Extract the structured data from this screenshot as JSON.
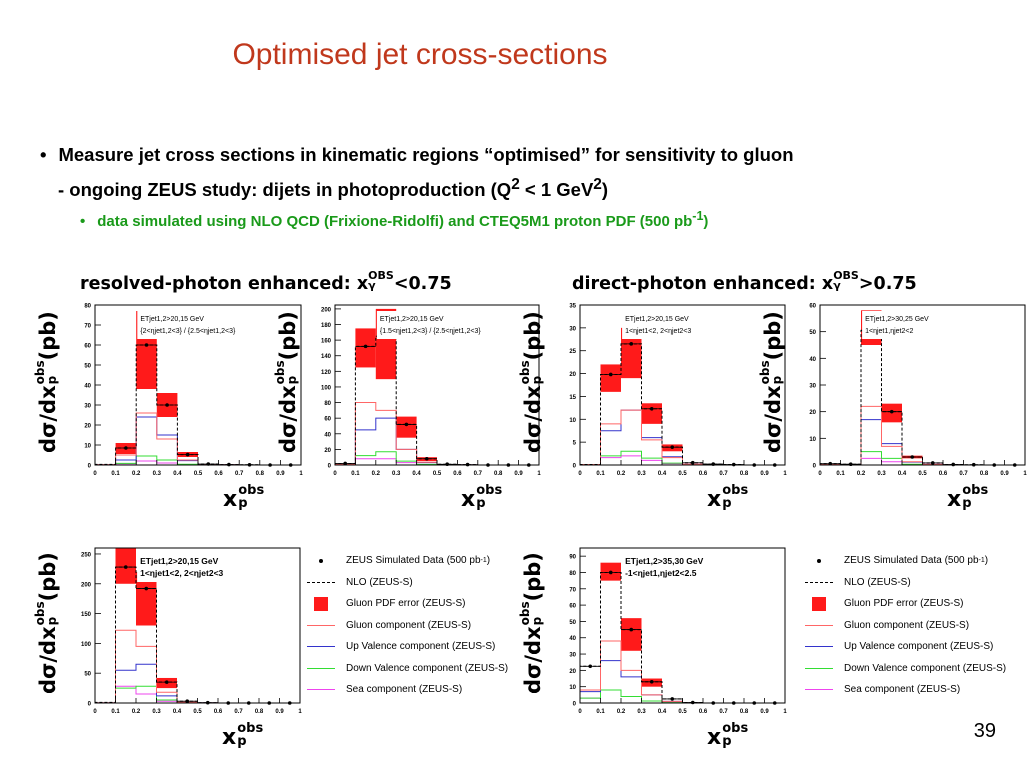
{
  "slide": {
    "title": "Optimised jet cross-sections",
    "bullet1": "Measure jet cross sections in kinematic regions “optimised” for sensitivity to gluon",
    "bullet2_pre": "- ongoing ZEUS study: dijets in photoproduction (Q",
    "bullet2_mid": " < 1 GeV",
    "bullet2_end": ")",
    "bullet2_sup": "2",
    "bullet3_pre": "data simulated using NLO QCD (Frixione-Ridolfi) and CTEQ5M1 proton PDF (500 pb",
    "bullet3_sup": "-1",
    "bullet3_end": ")",
    "page_number": "39"
  },
  "groups": {
    "resolved": {
      "pre": "resolved-photon enhanced: x",
      "sup": "OBS",
      "sub": "γ",
      "post": "<0.75"
    },
    "direct": {
      "pre": "direct-photon enhanced: x",
      "sup": "OBS",
      "sub": "γ",
      "post": ">0.75"
    }
  },
  "axis_text": {
    "y_pre": "dσ/dx",
    "y_sup": "obs",
    "y_sub": "p",
    "y_post": "(pb)",
    "x_main": "x",
    "x_sup": "obs",
    "x_sub": "p"
  },
  "legend": {
    "items": [
      {
        "label": "ZEUS Simulated Data (500 pb",
        "sup": "-1",
        "post": ")",
        "kind": "dot",
        "color": "#000000"
      },
      {
        "label": "NLO (ZEUS-S)",
        "kind": "dash",
        "color": "#000000"
      },
      {
        "label": "Gluon PDF error (ZEUS-S)",
        "kind": "box",
        "color": "#ff1a1a"
      },
      {
        "label": "Gluon component (ZEUS-S)",
        "kind": "line",
        "color": "#ff6666"
      },
      {
        "label": "Up Valence component (ZEUS-S)",
        "kind": "line",
        "color": "#3333cc"
      },
      {
        "label": "Down Valence component (ZEUS-S)",
        "kind": "line",
        "color": "#33dd33"
      },
      {
        "label": "Sea component (ZEUS-S)",
        "kind": "line",
        "color": "#ee44ee"
      }
    ]
  },
  "chart_data": [
    {
      "type": "bar",
      "x_ticks": [
        "0",
        "0.1",
        "0.2",
        "0.3",
        "0.4",
        "0.5",
        "0.6",
        "0.7",
        "0.8",
        "0.9",
        "1"
      ],
      "bin_edges": [
        0.0,
        0.1,
        0.2,
        0.3,
        0.4,
        0.5,
        0.6,
        0.7,
        0.8,
        0.9,
        1.0
      ],
      "ylim": [
        0,
        80
      ],
      "y_ticks": [
        0,
        10,
        20,
        30,
        40,
        50,
        60,
        70,
        80
      ],
      "annotation": [
        "E_T^{jet1,2}>20,15 GeV",
        "{2<η^{jet1,2}<3} / {2.5<η^{jet1,2}<3}"
      ],
      "data": [
        null,
        8.5,
        60,
        30,
        5.2,
        0.5,
        0.2,
        0.1,
        0,
        0
      ],
      "gluon_err": [
        null,
        [
          5.5,
          11
        ],
        [
          38,
          77
        ],
        [
          24,
          36
        ],
        [
          4,
          6.5
        ],
        null,
        null,
        null,
        null,
        null
      ],
      "nlo": [
        0.3,
        8.5,
        60,
        30,
        5.2,
        0.5,
        0.2,
        0.1,
        0,
        0
      ],
      "gluon": [
        0.2,
        5.0,
        26,
        13,
        2.5,
        0.2,
        0.1,
        0,
        0,
        0
      ],
      "up_valence": [
        0.1,
        2.5,
        24,
        15,
        2.2,
        0.2,
        0.1,
        0,
        0,
        0
      ],
      "down_valence": [
        0,
        0.8,
        4.5,
        2.5,
        0.4,
        0,
        0,
        0,
        0,
        0
      ],
      "sea": [
        0,
        0.6,
        2.0,
        1.0,
        0.2,
        0,
        0,
        0,
        0,
        0
      ]
    },
    {
      "type": "bar",
      "x_ticks": [
        "0",
        "0.1",
        "0.2",
        "0.3",
        "0.4",
        "0.5",
        "0.6",
        "0.7",
        "0.8",
        "0.9",
        "1"
      ],
      "bin_edges": [
        0.0,
        0.1,
        0.2,
        0.3,
        0.4,
        0.5,
        0.6,
        0.7,
        0.8,
        0.9,
        1.0
      ],
      "ylim": [
        0,
        205
      ],
      "y_ticks": [
        0,
        20,
        40,
        60,
        80,
        100,
        120,
        140,
        160,
        180,
        200
      ],
      "annotation": [
        "E_T^{jet1,2}>20,15 GeV",
        "{1.5<η^{jet1,2}<3} / {2.5<η^{jet1,2}<3}"
      ],
      "data": [
        2,
        152,
        165,
        52,
        8,
        1,
        0.5,
        0,
        0,
        0
      ],
      "gluon_err": [
        null,
        [
          125,
          175
        ],
        [
          110,
          200
        ],
        [
          35,
          62
        ],
        [
          5,
          10
        ],
        null,
        null,
        null,
        null,
        null
      ],
      "nlo": [
        2,
        152,
        165,
        52,
        8,
        1,
        0.5,
        0,
        0,
        0
      ],
      "gluon": [
        1,
        80,
        70,
        20,
        3.5,
        0.4,
        0.2,
        0,
        0,
        0
      ],
      "up_valence": [
        0.5,
        45,
        60,
        20,
        3,
        0.3,
        0.1,
        0,
        0,
        0
      ],
      "down_valence": [
        0.2,
        12,
        17,
        5,
        0.8,
        0.1,
        0,
        0,
        0,
        0
      ],
      "sea": [
        0.1,
        8,
        8,
        3,
        0.5,
        0,
        0,
        0,
        0,
        0
      ]
    },
    {
      "type": "bar",
      "x_ticks": [
        "0",
        "0.1",
        "0.2",
        "0.3",
        "0.4",
        "0.5",
        "0.6",
        "0.7",
        "0.8",
        "0.9",
        "1"
      ],
      "bin_edges": [
        0.0,
        0.1,
        0.2,
        0.3,
        0.4,
        0.5,
        0.6,
        0.7,
        0.8,
        0.9,
        1.0
      ],
      "ylim": [
        0,
        35
      ],
      "y_ticks": [
        0,
        5,
        10,
        15,
        20,
        25,
        30,
        35
      ],
      "annotation": [
        "E_T^{jet1,2}>20,15 GeV",
        "1<η^{jet1}<2, 2<η^{jet2}<3"
      ],
      "data": [
        null,
        19.8,
        26.5,
        12.3,
        3.9,
        0.5,
        0.2,
        0.1,
        0,
        0
      ],
      "gluon_err": [
        null,
        [
          16,
          22
        ],
        [
          19,
          30
        ],
        [
          9,
          13.5
        ],
        [
          3,
          4.5
        ],
        null,
        null,
        null,
        null,
        null
      ],
      "nlo": [
        0.1,
        19.8,
        26.5,
        12.3,
        3.9,
        0.5,
        0.2,
        0.1,
        0,
        0
      ],
      "gluon": [
        0.1,
        9,
        12,
        5.5,
        1.6,
        0.2,
        0.1,
        0,
        0,
        0
      ],
      "up_valence": [
        0,
        7.5,
        12,
        6,
        1.8,
        0.2,
        0.1,
        0,
        0,
        0
      ],
      "down_valence": [
        0,
        2,
        3,
        1.5,
        0.4,
        0,
        0,
        0,
        0,
        0
      ],
      "sea": [
        0,
        1.6,
        2,
        1,
        0.3,
        0,
        0,
        0,
        0,
        0
      ]
    },
    {
      "type": "bar",
      "x_ticks": [
        "0",
        "0.1",
        "0.2",
        "0.3",
        "0.4",
        "0.5",
        "0.6",
        "0.7",
        "0.8",
        "0.9",
        "1"
      ],
      "bin_edges": [
        0.0,
        0.1,
        0.2,
        0.3,
        0.4,
        0.5,
        0.6,
        0.7,
        0.8,
        0.9,
        1.0
      ],
      "ylim": [
        0,
        60
      ],
      "y_ticks": [
        0,
        10,
        20,
        30,
        40,
        50,
        60
      ],
      "annotation": [
        "E_T^{jet1,2}>30,25 GeV",
        "1<η^{jet1},η^{jet2}<2"
      ],
      "data": [
        0.5,
        0.3,
        50.5,
        20,
        3,
        0.8,
        0.2,
        0.1,
        0,
        0
      ],
      "gluon_err": [
        null,
        null,
        [
          45,
          58
        ],
        [
          16,
          23
        ],
        [
          2.5,
          3.5
        ],
        null,
        null,
        null,
        null,
        null
      ],
      "nlo": [
        0.5,
        0.3,
        50.5,
        20,
        3,
        0.8,
        0.2,
        0.1,
        0,
        0
      ],
      "gluon": [
        0.2,
        0.1,
        22,
        7,
        1.2,
        0.3,
        0.1,
        0,
        0,
        0
      ],
      "up_valence": [
        0.2,
        0.1,
        17,
        8,
        1.1,
        0.3,
        0.1,
        0,
        0,
        0
      ],
      "down_valence": [
        0,
        0,
        5,
        2.5,
        0.3,
        0.1,
        0,
        0,
        0,
        0
      ],
      "sea": [
        0,
        0,
        2.5,
        1.2,
        0.2,
        0,
        0,
        0,
        0,
        0
      ]
    },
    {
      "type": "bar",
      "x_ticks": [
        "0",
        "0.1",
        "0.2",
        "0.3",
        "0.4",
        "0.5",
        "0.6",
        "0.7",
        "0.8",
        "0.9",
        "1"
      ],
      "bin_edges": [
        0.0,
        0.1,
        0.2,
        0.3,
        0.4,
        0.5,
        0.6,
        0.7,
        0.8,
        0.9,
        1.0
      ],
      "ylim": [
        0,
        260
      ],
      "y_ticks": [
        0,
        50,
        100,
        150,
        200,
        250
      ],
      "annotation": [
        "E_T^{jet1,2}>20,15 GeV",
        "1<η^{jet1}<2, 2<η^{jet2}<3"
      ],
      "data": [
        null,
        228,
        192,
        35,
        3,
        0.5,
        0,
        0,
        0,
        0
      ],
      "gluon_err": [
        null,
        [
          200,
          260
        ],
        [
          130,
          220
        ],
        [
          25,
          42
        ],
        null,
        null,
        null,
        null,
        null,
        null
      ],
      "nlo": [
        1,
        228,
        192,
        35,
        3,
        0.5,
        0,
        0,
        0,
        0
      ],
      "gluon": [
        0.5,
        122,
        95,
        18,
        1.5,
        0.2,
        0,
        0,
        0,
        0
      ],
      "up_valence": [
        0.3,
        55,
        65,
        12,
        1,
        0.2,
        0,
        0,
        0,
        0
      ],
      "down_valence": [
        0.1,
        25,
        28,
        5,
        0.5,
        0,
        0,
        0,
        0,
        0
      ],
      "sea": [
        0.1,
        28,
        15,
        3,
        0.3,
        0,
        0,
        0,
        0,
        0
      ]
    },
    {
      "type": "bar",
      "x_ticks": [
        "0",
        "0.1",
        "0.2",
        "0.3",
        "0.4",
        "0.5",
        "0.6",
        "0.7",
        "0.8",
        "0.9",
        "1"
      ],
      "bin_edges": [
        0.0,
        0.1,
        0.2,
        0.3,
        0.4,
        0.5,
        0.6,
        0.7,
        0.8,
        0.9,
        1.0
      ],
      "ylim": [
        0,
        95
      ],
      "y_ticks": [
        0,
        10,
        20,
        30,
        40,
        50,
        60,
        70,
        80,
        90
      ],
      "annotation": [
        "E_T^{jet1,2}>35,30 GeV",
        "-1<η^{jet1},η^{jet2}<2.5"
      ],
      "data": [
        22.5,
        80,
        45,
        13,
        2.5,
        0.3,
        0,
        0,
        0,
        0
      ],
      "gluon_err": [
        null,
        [
          75,
          86
        ],
        [
          32,
          52
        ],
        [
          10,
          15
        ],
        null,
        null,
        null,
        null,
        null,
        null
      ],
      "nlo": [
        22.5,
        80,
        45,
        13,
        2.5,
        0.3,
        0,
        0,
        0,
        0
      ],
      "gluon": [
        8,
        38,
        20,
        5,
        1,
        0.1,
        0,
        0,
        0,
        0
      ],
      "up_valence": [
        7,
        26,
        16,
        5,
        1,
        0.1,
        0,
        0,
        0,
        0
      ],
      "down_valence": [
        3,
        8,
        4,
        1.2,
        0.2,
        0,
        0,
        0,
        0,
        0
      ],
      "sea": [
        3,
        8,
        4,
        1.2,
        0.2,
        0,
        0,
        0,
        0,
        0
      ]
    }
  ]
}
